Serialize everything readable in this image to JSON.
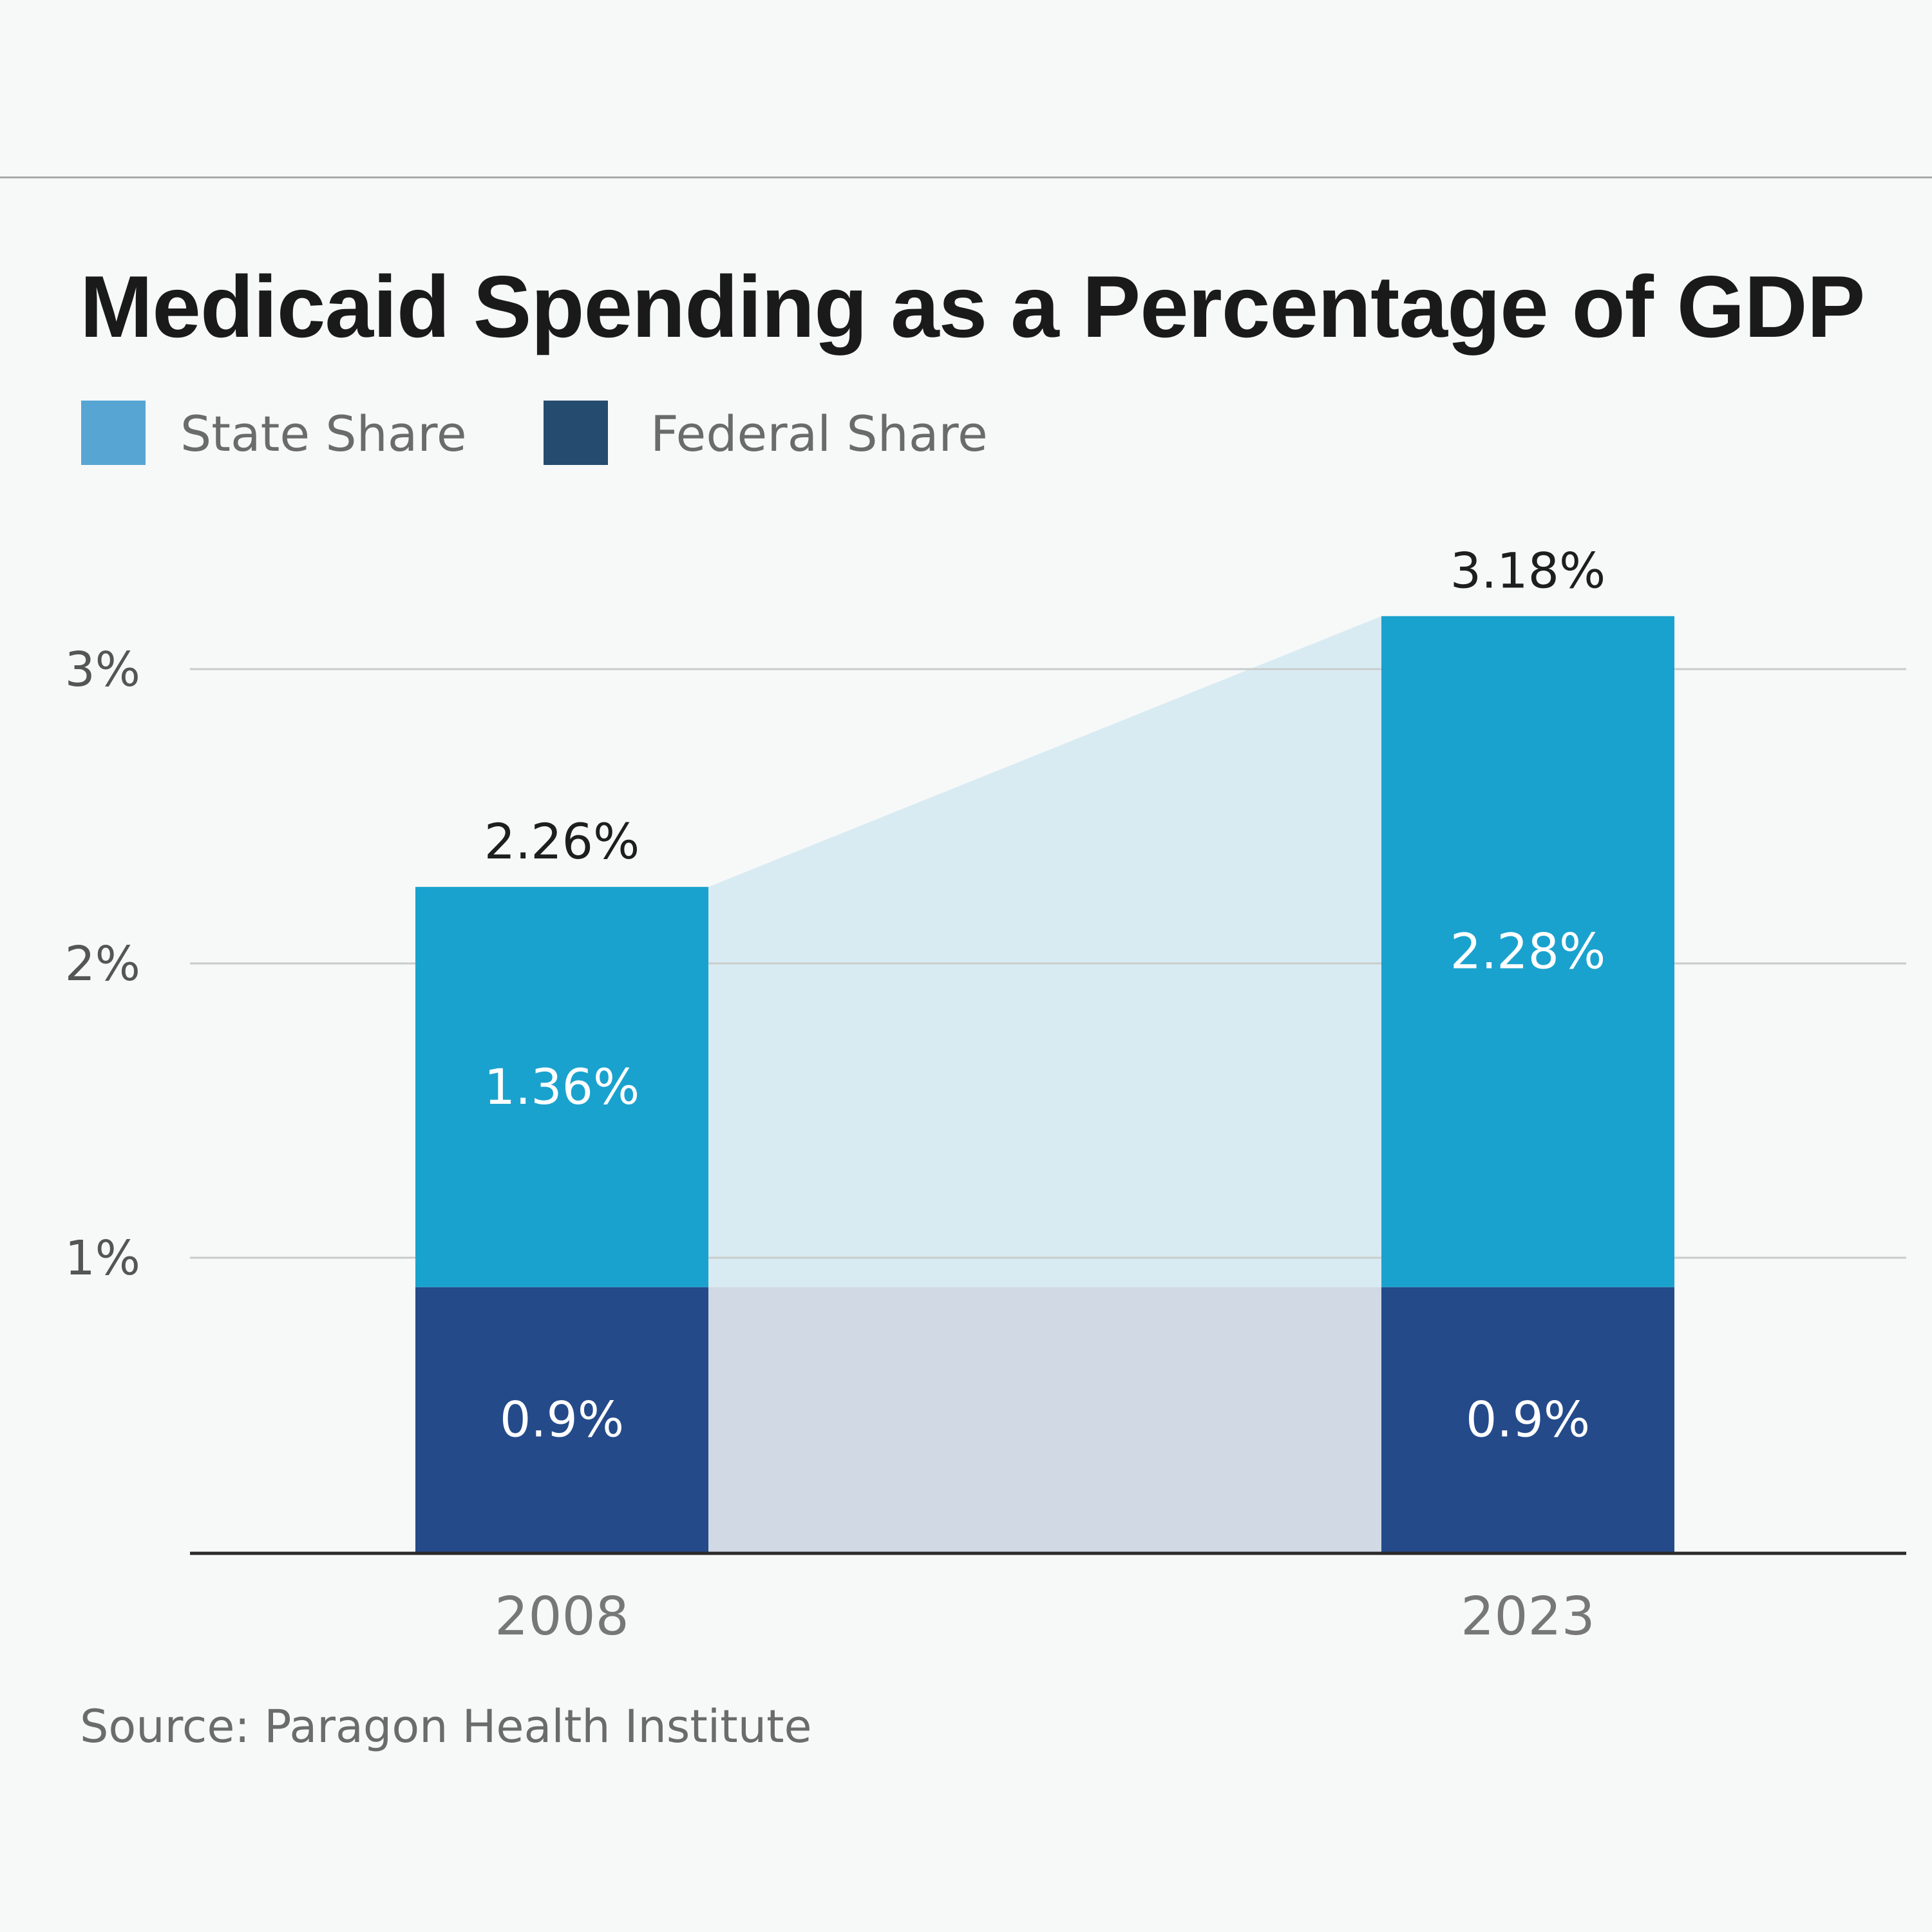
{
  "title": "Medicaid Spending as a Percentage of GDP",
  "legend": [
    {
      "label": "State Share",
      "color": "#57a5d3"
    },
    {
      "label": "Federal Share",
      "color": "#254c6e"
    }
  ],
  "source": "Source: Paragon Health Institute",
  "chart_data": {
    "type": "bar",
    "stacked": true,
    "categories": [
      "2008",
      "2023"
    ],
    "series": [
      {
        "name": "Federal Share",
        "values": [
          0.9,
          0.9
        ],
        "labels": [
          "0.9%",
          "0.9%"
        ],
        "color": "#244a8a"
      },
      {
        "name": "State Share",
        "values": [
          1.36,
          2.28
        ],
        "labels": [
          "1.36%",
          "2.28%"
        ],
        "color": "#1aa2ce"
      }
    ],
    "totals": [
      2.26,
      3.18
    ],
    "total_labels": [
      "2.26%",
      "3.18%"
    ],
    "yticks": [
      1,
      2,
      3
    ],
    "ytick_labels": [
      "1%",
      "2%",
      "3%"
    ],
    "ylim": [
      0,
      3.2
    ],
    "gridlines": true,
    "legend_position": "top-left",
    "connector_fill": {
      "state": "#d9ebf2",
      "federal": "#d0d9e4"
    }
  }
}
